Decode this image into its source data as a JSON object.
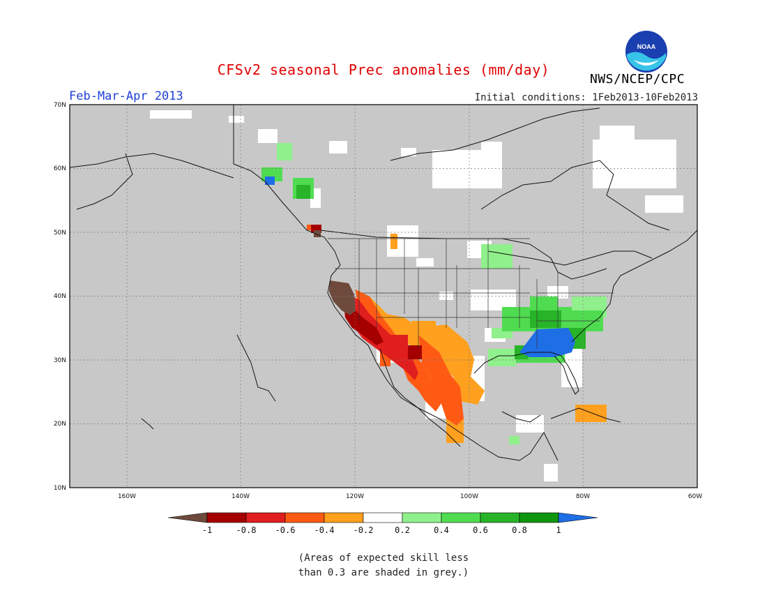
{
  "header": {
    "title": "CFSv2 seasonal Prec anomalies (mm/day)",
    "period": "Feb-Mar-Apr 2013",
    "initial_conditions": "Initial conditions: 1Feb2013-10Feb2013",
    "agency": "NWS/NCEP/CPC",
    "logo_text": "NOAA"
  },
  "axes": {
    "lat_labels": [
      "70N",
      "60N",
      "50N",
      "40N",
      "30N",
      "20N",
      "10N"
    ],
    "lon_labels": [
      "160W",
      "140W",
      "120W",
      "100W",
      "80W",
      "60W"
    ],
    "lon_range": [
      -170,
      -60
    ],
    "lat_range": [
      10,
      70
    ]
  },
  "legend": {
    "labels": [
      "-1",
      "-0.8",
      "-0.6",
      "-0.4",
      "-0.2",
      "0.2",
      "0.4",
      "0.6",
      "0.8",
      "1"
    ],
    "colors": [
      "#6e4a3c",
      "#a50000",
      "#e01e1e",
      "#ff5a14",
      "#ffa01e",
      "#ffffff",
      "#90f08c",
      "#50dc50",
      "#28b428",
      "#0f960f",
      "#1e6ee6"
    ]
  },
  "caption": {
    "line1": "(Areas of expected skill less",
    "line2": "than 0.3 are shaded in grey.)"
  },
  "colors": {
    "skill_mask_grey": "#c8c8c8",
    "title_red": "#e00000",
    "period_blue": "#1d3fd6"
  }
}
